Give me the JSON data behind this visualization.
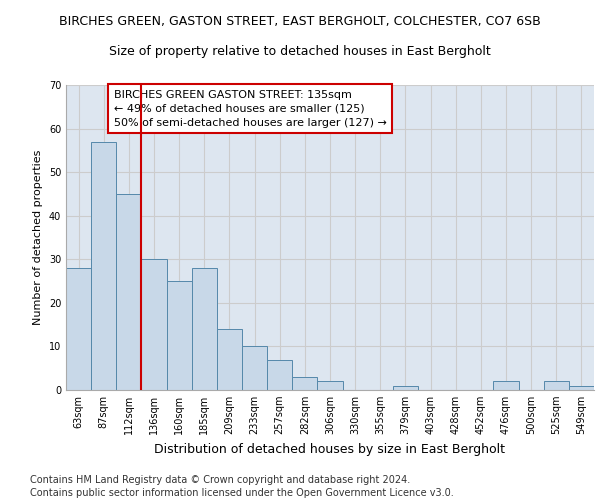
{
  "title": "BIRCHES GREEN, GASTON STREET, EAST BERGHOLT, COLCHESTER, CO7 6SB",
  "subtitle": "Size of property relative to detached houses in East Bergholt",
  "xlabel": "Distribution of detached houses by size in East Bergholt",
  "ylabel": "Number of detached properties",
  "categories": [
    "63sqm",
    "87sqm",
    "112sqm",
    "136sqm",
    "160sqm",
    "185sqm",
    "209sqm",
    "233sqm",
    "257sqm",
    "282sqm",
    "306sqm",
    "330sqm",
    "355sqm",
    "379sqm",
    "403sqm",
    "428sqm",
    "452sqm",
    "476sqm",
    "500sqm",
    "525sqm",
    "549sqm"
  ],
  "values": [
    28,
    57,
    45,
    30,
    25,
    28,
    14,
    10,
    7,
    3,
    2,
    0,
    0,
    1,
    0,
    0,
    0,
    2,
    0,
    2,
    1
  ],
  "bar_color": "#c8d8e8",
  "bar_edge_color": "#5588aa",
  "vline_color": "#cc0000",
  "vline_x": 2.5,
  "annotation_text": "BIRCHES GREEN GASTON STREET: 135sqm\n← 49% of detached houses are smaller (125)\n50% of semi-detached houses are larger (127) →",
  "annotation_box_color": "#ffffff",
  "annotation_box_edge": "#cc0000",
  "ylim": [
    0,
    70
  ],
  "yticks": [
    0,
    10,
    20,
    30,
    40,
    50,
    60,
    70
  ],
  "grid_color": "#cccccc",
  "bg_color": "#dde6f0",
  "footer_line1": "Contains HM Land Registry data © Crown copyright and database right 2024.",
  "footer_line2": "Contains public sector information licensed under the Open Government Licence v3.0.",
  "title_fontsize": 9,
  "subtitle_fontsize": 9,
  "xlabel_fontsize": 9,
  "ylabel_fontsize": 8,
  "tick_fontsize": 7,
  "annotation_fontsize": 8,
  "footer_fontsize": 7
}
